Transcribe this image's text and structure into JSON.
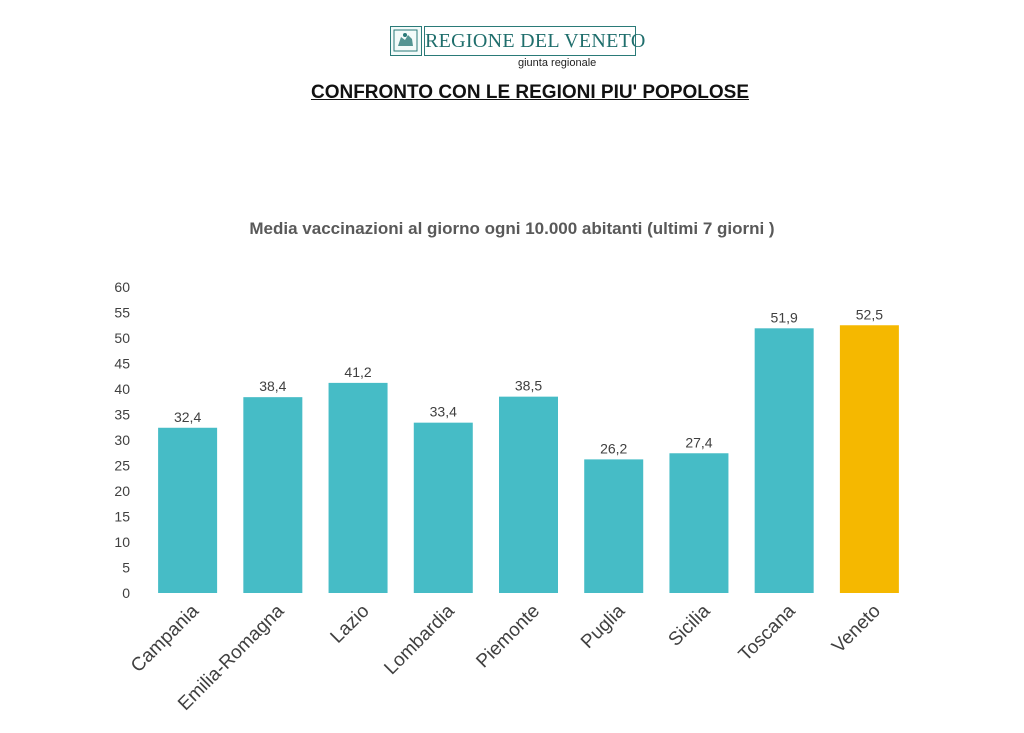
{
  "header": {
    "logo_text": "REGIONE DEL VENETO",
    "logo_subtitle": "giunta regionale",
    "document_title": "CONFRONTO CON LE REGIONI PIU' POPOLOSE"
  },
  "colors": {
    "bar": "#46BCC6",
    "highlight": "#F5B800",
    "logo": "#1F6E6C"
  },
  "chart_data": {
    "type": "bar",
    "title": "Media vaccinazioni al giorno ogni 10.000 abitanti (ultimi 7 giorni )",
    "xlabel": "",
    "ylabel": "",
    "ylim": [
      0,
      60
    ],
    "yticks": [
      "0",
      "5",
      "10",
      "15",
      "20",
      "25",
      "30",
      "35",
      "40",
      "45",
      "50",
      "55",
      "60"
    ],
    "categories": [
      "Campania",
      "Emilia-Romagna",
      "Lazio",
      "Lombardia",
      "Piemonte",
      "Puglia",
      "Sicilia",
      "Toscana",
      "Veneto"
    ],
    "values": [
      32.4,
      38.4,
      41.2,
      33.4,
      38.5,
      26.2,
      27.4,
      51.9,
      52.5
    ],
    "data_labels": [
      "32,4",
      "38,4",
      "41,2",
      "33,4",
      "38,5",
      "26,2",
      "27,4",
      "51,9",
      "52,5"
    ],
    "highlight_category": "Veneto",
    "grid": false,
    "legend": "none"
  }
}
